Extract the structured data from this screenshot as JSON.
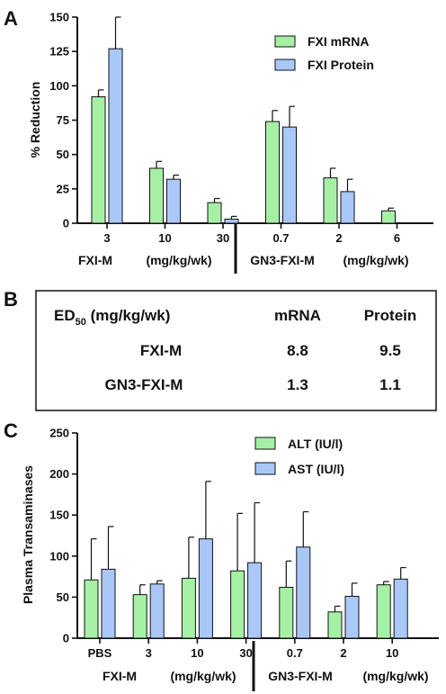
{
  "panels": {
    "a": "A",
    "b": "B",
    "c": "C"
  },
  "colors": {
    "mrna": "#a6f0a6",
    "protein": "#a9c8f8",
    "outline": "#111111"
  },
  "chart_data": [
    {
      "type": "bar",
      "panel": "A",
      "ylabel": "% Reduction",
      "ylim": [
        0,
        150
      ],
      "yticks": [
        0,
        25,
        50,
        75,
        100,
        125,
        150
      ],
      "categories": [
        "3",
        "10",
        "30",
        "0.7",
        "2",
        "6"
      ],
      "series": [
        {
          "name": "FXI mRNA",
          "color": "#a6f0a6",
          "values": [
            92,
            40,
            15,
            74,
            33,
            9
          ],
          "errors": [
            5,
            5,
            3,
            8,
            7,
            2
          ]
        },
        {
          "name": "FXI Protein",
          "color": "#a9c8f8",
          "values": [
            127,
            32,
            3,
            70,
            23,
            0
          ],
          "errors": [
            23,
            3,
            2,
            15,
            9,
            0
          ]
        }
      ],
      "group_labels": [
        "FXI-M",
        "(mg/kg/wk)",
        "GN3-FXI-M",
        "(mg/kg/wk)"
      ],
      "legend": "top-right",
      "grid": false
    },
    {
      "type": "table",
      "panel": "B",
      "header": {
        "ed_prefix": "ED",
        "ed_sub": "50",
        "ed_suffix": " (mg/kg/wk)",
        "mrna": "mRNA",
        "protein": "Protein"
      },
      "rows": [
        {
          "name": "FXI-M",
          "mrna": "8.8",
          "protein": "9.5"
        },
        {
          "name": "GN3-FXI-M",
          "mrna": "1.3",
          "protein": "1.1"
        }
      ]
    },
    {
      "type": "bar",
      "panel": "C",
      "ylabel": "Plasma Transaminases",
      "ylim": [
        0,
        250
      ],
      "yticks": [
        0,
        50,
        100,
        150,
        200,
        250
      ],
      "categories": [
        "PBS",
        "3",
        "10",
        "30",
        "0.7",
        "2",
        "10"
      ],
      "series": [
        {
          "name": "ALT (IU/l)",
          "color": "#a6f0a6",
          "values": [
            71,
            53,
            73,
            82,
            62,
            32,
            65
          ],
          "errors": [
            50,
            12,
            50,
            70,
            32,
            7,
            4
          ]
        },
        {
          "name": "AST (IU/l)",
          "color": "#a9c8f8",
          "values": [
            84,
            66,
            121,
            92,
            111,
            51,
            72
          ],
          "errors": [
            52,
            4,
            70,
            73,
            43,
            16,
            14
          ]
        }
      ],
      "group_labels": [
        "FXI-M",
        "(mg/kg/wk)",
        "GN3-FXI-M",
        "(mg/kg/wk)"
      ],
      "legend": "top-right",
      "grid": false
    }
  ]
}
